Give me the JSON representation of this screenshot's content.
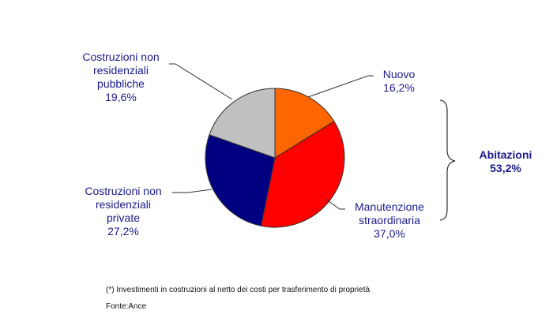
{
  "chart_data": {
    "type": "pie",
    "title": "",
    "slices": [
      {
        "label": "Nuovo",
        "value": 16.2,
        "display": "16,2%",
        "color": "#ff6600"
      },
      {
        "label": "Manutenzione straordinaria",
        "value": 37.0,
        "display": "37,0%",
        "color": "#ff0000"
      },
      {
        "label": "Costruzioni non residenziali private",
        "value": 27.2,
        "display": "27,2%",
        "color": "#000080"
      },
      {
        "label": "Costruzioni non residenziali pubbliche",
        "value": 19.6,
        "display": "19,6%",
        "color": "#c0c0c0"
      }
    ],
    "group_annotation": {
      "label": "Abitazioni",
      "value": 53.2,
      "display": "53,2%",
      "members": [
        "Nuovo",
        "Manutenzione straordinaria"
      ]
    },
    "start_angle_deg": 0,
    "direction": "clockwise"
  },
  "labels": {
    "pubbliche": [
      "Costruzioni  non",
      "residenziali",
      "pubbliche",
      "19,6%"
    ],
    "private": [
      "Costruzioni  non",
      "residenziali",
      "private",
      "27,2%"
    ],
    "nuovo": [
      "Nuovo",
      "16,2%"
    ],
    "manutenzione": [
      "Manutenzione",
      "straordinaria",
      "37,0%"
    ],
    "abitazioni": [
      "Abitazioni",
      "53,2%"
    ]
  },
  "footnote": "(*) Investimenti in costruzioni al netto dei costi per trasferimento di proprietà",
  "source": "Fonte:Ance"
}
